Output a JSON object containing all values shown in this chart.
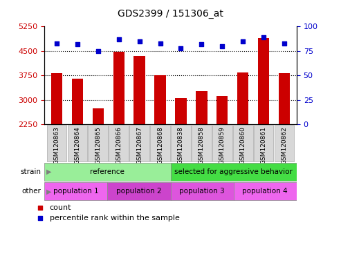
{
  "title": "GDS2399 / 151306_at",
  "samples": [
    "GSM120863",
    "GSM120864",
    "GSM120865",
    "GSM120866",
    "GSM120867",
    "GSM120868",
    "GSM120838",
    "GSM120858",
    "GSM120859",
    "GSM120860",
    "GSM120861",
    "GSM120862"
  ],
  "counts": [
    3820,
    3660,
    2750,
    4480,
    4350,
    3750,
    3060,
    3280,
    3130,
    3850,
    4900,
    3820
  ],
  "percentiles": [
    83,
    82,
    75,
    87,
    85,
    83,
    78,
    82,
    80,
    85,
    89,
    83
  ],
  "ylim_left": [
    2250,
    5250
  ],
  "ylim_right": [
    0,
    100
  ],
  "yticks_left": [
    2250,
    3000,
    3750,
    4500,
    5250
  ],
  "yticks_right": [
    0,
    25,
    50,
    75,
    100
  ],
  "bar_color": "#cc0000",
  "dot_color": "#0000cc",
  "grid_ticks": [
    3000,
    3750,
    4500
  ],
  "strain_groups": [
    {
      "label": "reference",
      "start": 0,
      "end": 6,
      "color": "#99ee99"
    },
    {
      "label": "selected for aggressive behavior",
      "start": 6,
      "end": 12,
      "color": "#44dd44"
    }
  ],
  "other_groups": [
    {
      "label": "population 1",
      "start": 0,
      "end": 3,
      "color": "#ee66ee"
    },
    {
      "label": "population 2",
      "start": 3,
      "end": 6,
      "color": "#cc44cc"
    },
    {
      "label": "population 3",
      "start": 6,
      "end": 9,
      "color": "#dd55dd"
    },
    {
      "label": "population 4",
      "start": 9,
      "end": 12,
      "color": "#ee66ee"
    }
  ],
  "tick_label_color_left": "#cc0000",
  "tick_label_color_right": "#0000cc",
  "bar_width": 0.55,
  "xlabel_box_color": "#d8d8d8",
  "xlabel_box_edge": "#aaaaaa"
}
